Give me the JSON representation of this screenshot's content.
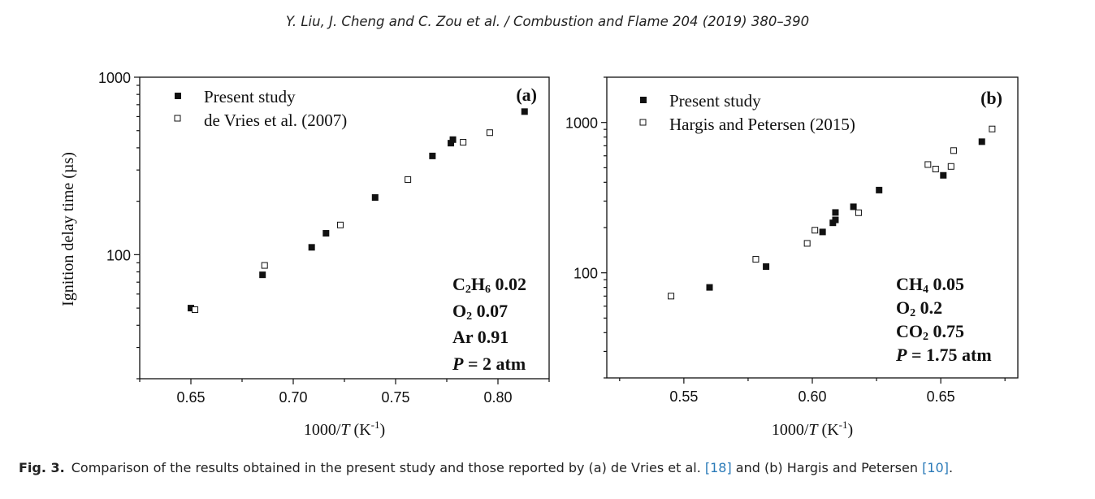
{
  "header": "Y. Liu, J. Cheng and C. Zou et al. / Combustion and Flame 204 (2019) 380–390",
  "caption": {
    "label": "Fig. 3.",
    "parts": [
      {
        "text": "Comparison of the results obtained in the present study and those reported by (a) de Vries et al. ",
        "ref": false
      },
      {
        "text": "[18]",
        "ref": true
      },
      {
        "text": " and (b) Hargis and Petersen ",
        "ref": false
      },
      {
        "text": "[10]",
        "ref": true
      },
      {
        "text": ".",
        "ref": false
      }
    ]
  },
  "chart_data": [
    {
      "type": "scatter",
      "panel_label": "(a)",
      "xlabel": "1000/T (K-1)",
      "ylabel": "Ignition delay time (µs)",
      "yscale": "log",
      "xlim": [
        0.625,
        0.825
      ],
      "ylim": [
        20,
        1000
      ],
      "x_ticks": [
        0.65,
        0.7,
        0.75,
        0.8
      ],
      "x_tick_labels": [
        "0.65",
        "0.70",
        "0.75",
        "0.80"
      ],
      "y_ticks": [
        100,
        1000
      ],
      "y_tick_labels": [
        "100",
        "1000"
      ],
      "legend_position": "top-left",
      "annotations": [
        "C2H6 0.02",
        "O2 0.07",
        "Ar 0.91",
        "P = 2 atm"
      ],
      "series": [
        {
          "name": "Present study",
          "marker": "filled-square",
          "x": [
            0.65,
            0.685,
            0.709,
            0.716,
            0.74,
            0.768,
            0.777,
            0.778,
            0.813
          ],
          "y": [
            50,
            77,
            110,
            132,
            210,
            360,
            425,
            445,
            640
          ]
        },
        {
          "name": "de Vries et al. (2007)",
          "marker": "open-square",
          "x": [
            0.652,
            0.686,
            0.723,
            0.756,
            0.783,
            0.796
          ],
          "y": [
            49,
            87,
            147,
            265,
            430,
            487
          ]
        }
      ]
    },
    {
      "type": "scatter",
      "panel_label": "(b)",
      "xlabel": "1000/T (K-1)",
      "ylabel": "",
      "yscale": "log",
      "xlim": [
        0.52,
        0.68
      ],
      "ylim": [
        20,
        2000
      ],
      "x_ticks": [
        0.55,
        0.6,
        0.65
      ],
      "x_tick_labels": [
        "0.55",
        "0.60",
        "0.65"
      ],
      "y_ticks": [
        100,
        1000
      ],
      "y_tick_labels": [
        "100",
        "1000"
      ],
      "legend_position": "top-left",
      "annotations": [
        "CH4 0.05",
        "O2 0.2",
        "CO2 0.75",
        "P = 1.75 atm"
      ],
      "series": [
        {
          "name": "Present study",
          "marker": "filled-square",
          "x": [
            0.56,
            0.582,
            0.604,
            0.608,
            0.609,
            0.609,
            0.616,
            0.626,
            0.651,
            0.666
          ],
          "y": [
            80,
            110,
            187,
            215,
            225,
            252,
            275,
            355,
            445,
            745
          ]
        },
        {
          "name": "Hargis and Petersen (2015)",
          "marker": "open-square",
          "x": [
            0.545,
            0.578,
            0.598,
            0.601,
            0.618,
            0.645,
            0.648,
            0.654,
            0.655,
            0.67
          ],
          "y": [
            70,
            123,
            157,
            192,
            251,
            525,
            490,
            510,
            650,
            905
          ]
        }
      ]
    }
  ]
}
